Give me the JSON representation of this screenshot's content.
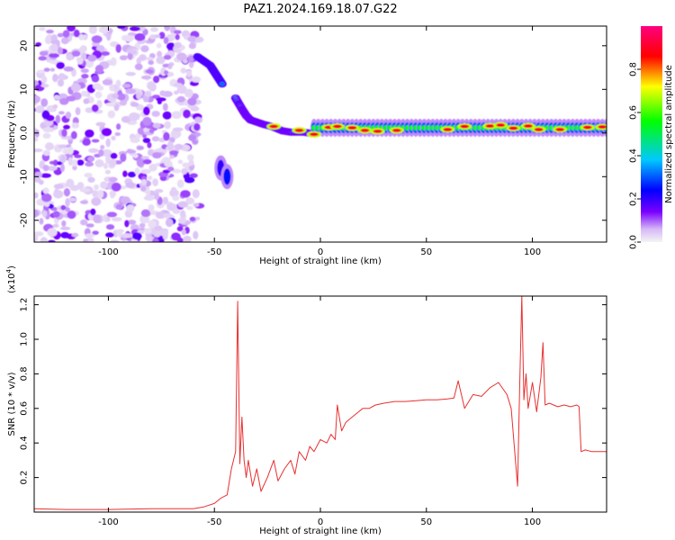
{
  "title": "PAZ1.2024.169.18.07.G22",
  "chart_data": [
    {
      "type": "heatmap",
      "xlabel": "Height of straight line (km)",
      "ylabel": "Frequency (Hz)",
      "xlim": [
        -135,
        135
      ],
      "ylim": [
        -25,
        24.5
      ],
      "xticks": [
        -100,
        -50,
        0,
        50,
        100
      ],
      "yticks": [
        -20,
        -10,
        0,
        10,
        20
      ],
      "colorbar": {
        "label": "Normalized spectral amplitude",
        "ticks": [
          0.0,
          0.2,
          0.4,
          0.6,
          0.8
        ],
        "range": [
          0,
          1
        ],
        "colormap": [
          "#f4f4f4",
          "#d6b8f7",
          "#7a00ff",
          "#0000ff",
          "#00c8ff",
          "#00ff00",
          "#ffff00",
          "#ff0000",
          "#ff007f"
        ]
      },
      "regions": [
        {
          "kind": "noise",
          "x": [
            -135,
            -57
          ],
          "y": [
            -25,
            24.5
          ],
          "amplitude": 0.1
        },
        {
          "kind": "track",
          "points": [
            [
              -58,
              17.5
            ],
            [
              -55,
              16.5
            ],
            [
              -52,
              15.5
            ],
            [
              -50,
              14
            ],
            [
              -48,
              12.5
            ],
            [
              -46,
              11
            ]
          ],
          "amplitude": 0.35
        },
        {
          "kind": "track",
          "points": [
            [
              -40,
              8
            ],
            [
              -37,
              5.5
            ],
            [
              -35,
              4
            ],
            [
              -33,
              3
            ],
            [
              -30,
              2.5
            ],
            [
              -27,
              2
            ],
            [
              -23,
              1.5
            ],
            [
              -18,
              0.5
            ],
            [
              -14,
              0.2
            ],
            [
              -8,
              0.2
            ],
            [
              -3,
              -0.2
            ]
          ],
          "amplitude": 0.3
        },
        {
          "kind": "blob",
          "x": -47,
          "y": -8,
          "amplitude": 0.2
        },
        {
          "kind": "blob",
          "x": -44,
          "y": -10,
          "amplitude": 0.25
        },
        {
          "kind": "band",
          "x": [
            -3,
            135
          ],
          "y_center": 1.2,
          "width": 2.5,
          "amplitude": 0.55
        },
        {
          "kind": "peaks",
          "x": [
            -22,
            -10,
            -3,
            4,
            8,
            15,
            21,
            27,
            36,
            60,
            68,
            80,
            85,
            91,
            98,
            103,
            113,
            126,
            133
          ],
          "y": [
            1.5,
            0.6,
            -0.3,
            1.3,
            1.5,
            1.2,
            0.6,
            0.4,
            0.6,
            0.8,
            1.5,
            1.6,
            1.8,
            1.1,
            1.6,
            0.8,
            0.8,
            1.3,
            1.4
          ],
          "amplitude": 0.9
        }
      ]
    },
    {
      "type": "line",
      "xlabel": "Height of straight line (km)",
      "ylabel": "SNR (10 * v/v)",
      "y_multiplier": "(x10",
      "y_multiplier_exp": "4",
      "y_multiplier_close": ")",
      "xlim": [
        -135,
        135
      ],
      "ylim": [
        0,
        1.25
      ],
      "xticks": [
        -100,
        -50,
        0,
        50,
        100
      ],
      "yticks": [
        0.2,
        0.4,
        0.6,
        0.8,
        1.0,
        1.2
      ],
      "color": "#e83030",
      "series": [
        {
          "x": [
            -135,
            -120,
            -100,
            -80,
            -60,
            -55,
            -50,
            -47,
            -44,
            -42,
            -40,
            -39,
            -38,
            -37,
            -36,
            -35,
            -34,
            -32,
            -30,
            -28,
            -25,
            -22,
            -20,
            -17,
            -14,
            -12,
            -10,
            -7,
            -5,
            -3,
            0,
            3,
            5,
            7,
            8,
            10,
            12,
            15,
            18,
            20,
            23,
            26,
            30,
            35,
            40,
            45,
            50,
            55,
            60,
            63,
            65,
            68,
            72,
            76,
            80,
            84,
            88,
            90,
            92,
            93,
            94,
            95,
            96,
            97,
            98,
            100,
            102,
            104,
            105,
            106,
            108,
            110,
            112,
            115,
            118,
            121,
            122,
            123,
            125,
            128,
            131,
            135
          ],
          "y": [
            0.02,
            0.015,
            0.015,
            0.02,
            0.02,
            0.03,
            0.05,
            0.08,
            0.1,
            0.25,
            0.35,
            1.22,
            0.28,
            0.55,
            0.3,
            0.2,
            0.3,
            0.15,
            0.25,
            0.12,
            0.2,
            0.3,
            0.18,
            0.25,
            0.3,
            0.22,
            0.35,
            0.3,
            0.38,
            0.35,
            0.42,
            0.4,
            0.45,
            0.42,
            0.62,
            0.47,
            0.52,
            0.55,
            0.58,
            0.6,
            0.6,
            0.62,
            0.63,
            0.64,
            0.64,
            0.645,
            0.65,
            0.65,
            0.655,
            0.66,
            0.76,
            0.6,
            0.68,
            0.67,
            0.72,
            0.75,
            0.68,
            0.6,
            0.3,
            0.15,
            0.72,
            1.25,
            0.65,
            0.8,
            0.6,
            0.75,
            0.58,
            0.78,
            0.98,
            0.62,
            0.63,
            0.62,
            0.61,
            0.62,
            0.61,
            0.62,
            0.61,
            0.35,
            0.36,
            0.35,
            0.35,
            0.35
          ]
        }
      ]
    }
  ]
}
